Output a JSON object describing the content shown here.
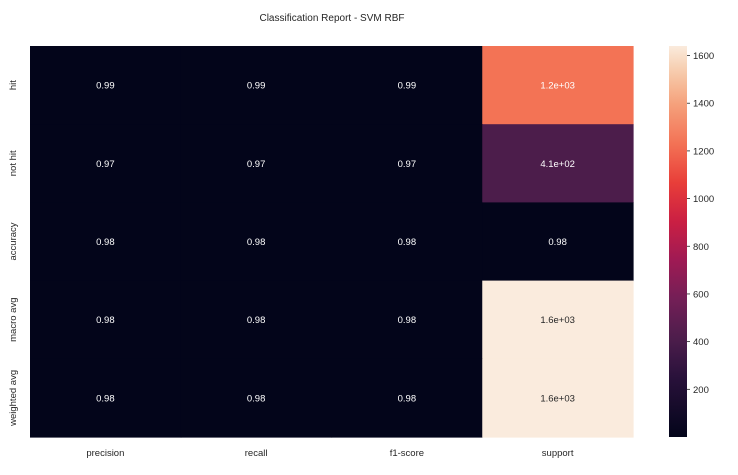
{
  "chart_data": {
    "type": "heatmap",
    "title": "Classification Report - SVM RBF",
    "xlabel": "",
    "ylabel": "",
    "columns": [
      "precision",
      "recall",
      "f1-score",
      "support"
    ],
    "rows": [
      "hit",
      "not hit",
      "accuracy",
      "macro avg",
      "weighted avg"
    ],
    "values": [
      [
        0.99,
        0.99,
        0.99,
        1232
      ],
      [
        0.97,
        0.97,
        0.97,
        408
      ],
      [
        0.98,
        0.98,
        0.98,
        0.98
      ],
      [
        0.98,
        0.98,
        0.98,
        1640
      ],
      [
        0.98,
        0.98,
        0.98,
        1640
      ]
    ],
    "annotations": [
      [
        "0.99",
        "0.99",
        "0.99",
        "1.2e+03"
      ],
      [
        "0.97",
        "0.97",
        "0.97",
        "4.1e+02"
      ],
      [
        "0.98",
        "0.98",
        "0.98",
        "0.98"
      ],
      [
        "0.98",
        "0.98",
        "0.98",
        "1.6e+03"
      ],
      [
        "0.98",
        "0.98",
        "0.98",
        "1.6e+03"
      ]
    ],
    "colormap": "rocket",
    "colorbar": {
      "range": [
        0,
        1640
      ],
      "ticks": [
        200,
        400,
        600,
        800,
        1000,
        1200,
        1400,
        1600
      ],
      "placement": "right"
    },
    "grid": false,
    "legend": "none"
  }
}
